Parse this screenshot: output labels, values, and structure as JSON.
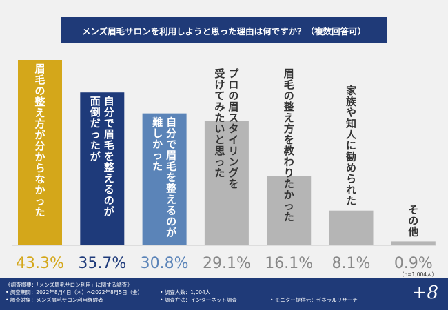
{
  "title": "メンズ眉毛サロンを利用しようと思った理由は何ですか？（複数回答可）",
  "sample_note": "（n=1,004人）",
  "brand": "+8",
  "footer": {
    "summary": "《調査概要：「メンズ眉毛サロン利用」に関する調査》",
    "period": "• 調査期間：2022年8月4日（木）〜2022年8月5日（金）",
    "target": "• 調査対象：メンズ眉毛サロン利用経験者",
    "count": "• 調査人数：1,004人",
    "method": "• 調査方法：インターネット調査",
    "provider": "• モニター提供元：ゼネラルリサーチ"
  },
  "chart_data": {
    "type": "bar",
    "title": "メンズ眉毛サロンを利用しようと思った理由は何ですか？（複数回答可）",
    "categories": [
      "眉毛の整え方が分からなかった",
      "自分で眉毛を整えるのが面倒だったが",
      "自分で眉毛を整えるのが難しかった",
      "プロの眉スタイリングを受けてみたいと思った",
      "眉毛の整え方を教わりたかった",
      "家族や知人に勧められた",
      "その他"
    ],
    "label_lines": [
      [
        "眉毛の整え方が分からなかった"
      ],
      [
        "自分で眉毛を整えるのが",
        "面倒だったが"
      ],
      [
        "自分で眉毛を整えるのが",
        "難しかった"
      ],
      [
        "プロの眉スタイリングを",
        "受けてみたいと思った"
      ],
      [
        "眉毛の整え方を教わりたかった"
      ],
      [
        "家族や知人に勧められた"
      ],
      [
        "その他"
      ]
    ],
    "values": [
      43.3,
      35.7,
      30.8,
      29.1,
      16.1,
      8.1,
      0.9
    ],
    "value_labels": [
      "43.3%",
      "35.7%",
      "30.8%",
      "29.1%",
      "16.1%",
      "8.1%",
      "0.9%"
    ],
    "unit": "%",
    "colors": [
      "#d4a71a",
      "#1e3a7a",
      "#5b84b8",
      "#b5b5b5",
      "#b5b5b5",
      "#b5b5b5",
      "#b5b5b5"
    ],
    "label_colors": [
      "#ffffff",
      "#ffffff",
      "#ffffff",
      "#333333",
      "#333333",
      "#333333",
      "#333333"
    ],
    "value_colors": [
      "#d4a71a",
      "#1e3a7a",
      "#5b84b8",
      "#888888",
      "#888888",
      "#888888",
      "#888888"
    ],
    "ylim": [
      0,
      45
    ],
    "grid": false,
    "legend": "none"
  }
}
